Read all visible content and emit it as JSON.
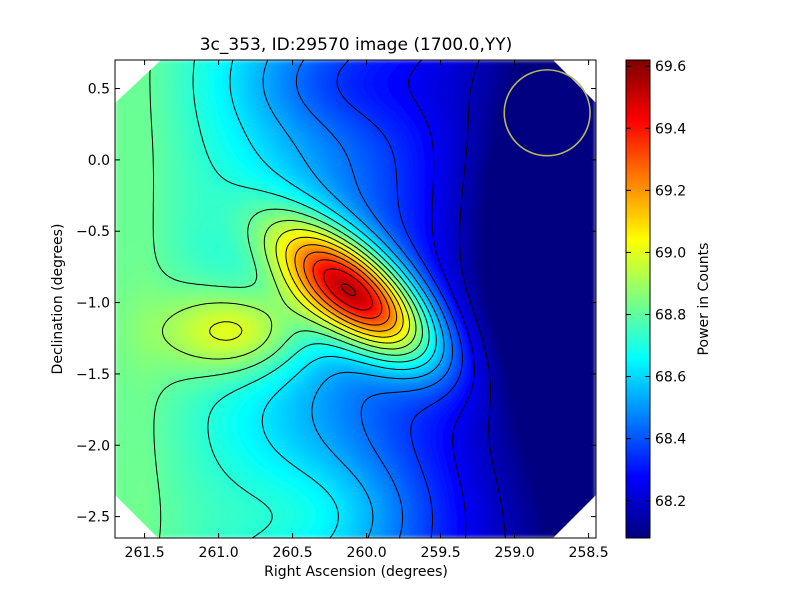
{
  "chart_data": {
    "type": "heatmap",
    "title": "3c_353, ID:29570 image (1700.0,YY)",
    "xlabel": "Right Ascension (degrees)",
    "ylabel": "Declination (degrees)",
    "colorbar_label": "Power in Counts",
    "colormap": "jet",
    "xlim": [
      261.7,
      258.45
    ],
    "ylim": [
      -2.65,
      0.7
    ],
    "x_ticks": [
      261.5,
      261.0,
      260.5,
      260.0,
      259.5,
      259.0,
      258.5
    ],
    "x_tick_labels": [
      "261.5",
      "261.0",
      "260.5",
      "260.0",
      "259.5",
      "259.0",
      "258.5"
    ],
    "y_ticks": [
      0.5,
      0.0,
      -0.5,
      -1.0,
      -1.5,
      -2.0,
      -2.5
    ],
    "y_tick_labels": [
      "0.5",
      "0.0",
      "−0.5",
      "−1.0",
      "−1.5",
      "−2.0",
      "−2.5"
    ],
    "colorbar_range": [
      68.08,
      69.62
    ],
    "colorbar_ticks": [
      68.2,
      68.4,
      68.6,
      68.8,
      69.0,
      69.2,
      69.4,
      69.6
    ],
    "colorbar_tick_labels": [
      "68.2",
      "68.4",
      "68.6",
      "68.8",
      "69.0",
      "69.2",
      "69.4",
      "69.6"
    ],
    "features": {
      "peak": {
        "ra": 260.08,
        "dec": -0.93,
        "value": 69.6
      },
      "trough": {
        "ra": 258.5,
        "dec": -0.65,
        "value": 68.1
      },
      "circle": {
        "ra": 258.78,
        "dec": 0.33,
        "radius_deg": 0.29,
        "color": "#b5b55a"
      }
    },
    "contour_count": 16,
    "contour_color": "#000000"
  }
}
